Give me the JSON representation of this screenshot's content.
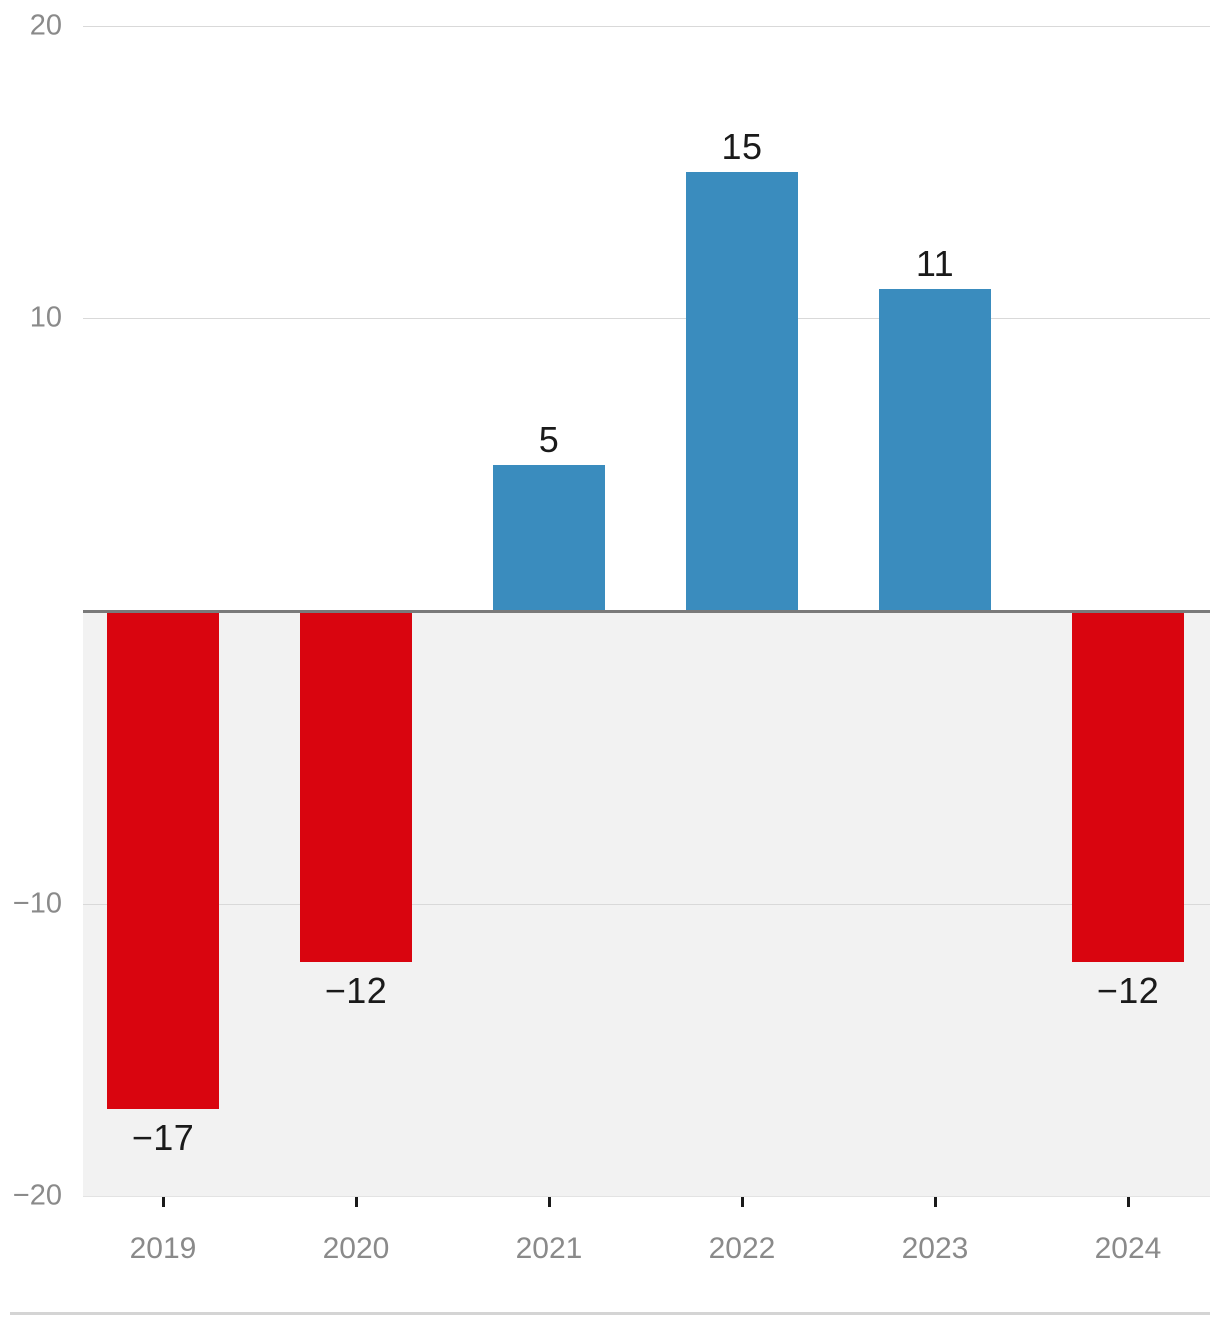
{
  "chart_data": {
    "type": "bar",
    "categories": [
      "2019",
      "2020",
      "2021",
      "2022",
      "2023",
      "2024"
    ],
    "values": [
      -17,
      -12,
      5,
      15,
      11,
      -12
    ],
    "bar_labels": [
      "−17",
      "−12",
      "5",
      "15",
      "11",
      "−12"
    ],
    "title": "",
    "xlabel": "",
    "ylabel": "",
    "ylim": [
      -20,
      20
    ],
    "y_ticks": [
      {
        "value": 20,
        "label": "20"
      },
      {
        "value": 10,
        "label": "10"
      },
      {
        "value": -10,
        "label": "−10"
      },
      {
        "value": -20,
        "label": "−20"
      }
    ],
    "gridlines_at": [
      20,
      10,
      -10,
      -20
    ],
    "grid": "horizontal",
    "legend": "none",
    "colors": {
      "positive_bar": "#3a8cbe",
      "negative_bar": "#d9050f",
      "negative_region_background": "#f2f2f2",
      "gridline": "#d9d9d9",
      "zero_axis_line": "#7a7a7a",
      "axis_text": "#8a8a8a",
      "bar_label_text": "#1a1a1a",
      "tick_mark": "#1a1a1a",
      "footer_divider": "#d4d4d4"
    }
  }
}
